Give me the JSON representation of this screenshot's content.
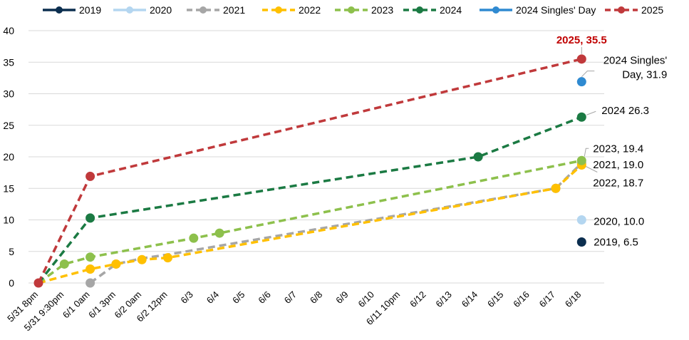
{
  "chart_data": {
    "type": "line",
    "title": "",
    "xlabel": "",
    "ylabel": "",
    "ylim": [
      0,
      40
    ],
    "yticks": [
      0,
      5,
      10,
      15,
      20,
      25,
      30,
      35,
      40
    ],
    "grid": "horizontal",
    "legend_position": "top",
    "categories": [
      "5/31 8pm",
      "5/31 9:30pm",
      "6/1 0am",
      "6/1 3pm",
      "6/2 0am",
      "6/2 12pm",
      "6/3",
      "6/4",
      "6/5",
      "6/6",
      "6/7",
      "6/8",
      "6/9",
      "6/10",
      "6/11 10pm",
      "6/12",
      "6/13",
      "6/14",
      "6/15",
      "6/16",
      "6/17",
      "6/18"
    ],
    "series": [
      {
        "name": "2019",
        "color": "#0b2e4f",
        "dashed": false,
        "points": [
          {
            "x": "6/18",
            "y": 6.5,
            "marker": true
          }
        ]
      },
      {
        "name": "2020",
        "color": "#b4d6f0",
        "dashed": false,
        "points": [
          {
            "x": "6/18",
            "y": 10.0,
            "marker": true
          }
        ]
      },
      {
        "name": "2021",
        "color": "#a6a6a6",
        "dashed": true,
        "points": [
          {
            "x": "6/1 0am",
            "y": 0,
            "marker": true
          },
          {
            "x": "6/1 3pm",
            "y": 3.0,
            "marker": true
          },
          {
            "x": "6/2 0am",
            "y": 3.9,
            "marker": false
          },
          {
            "x": "6/2 12pm",
            "y": 4.5,
            "marker": false
          },
          {
            "x": "6/17",
            "y": 15.0,
            "marker": true
          },
          {
            "x": "6/18",
            "y": 19.0,
            "marker": true
          }
        ]
      },
      {
        "name": "2022",
        "color": "#ffc000",
        "dashed": true,
        "points": [
          {
            "x": "5/31 8pm",
            "y": 0,
            "marker": false
          },
          {
            "x": "6/1 0am",
            "y": 2.2,
            "marker": true
          },
          {
            "x": "6/1 3pm",
            "y": 3.0,
            "marker": true
          },
          {
            "x": "6/2 0am",
            "y": 3.7,
            "marker": true
          },
          {
            "x": "6/2 12pm",
            "y": 4.0,
            "marker": true
          },
          {
            "x": "6/17",
            "y": 15.0,
            "marker": true
          },
          {
            "x": "6/18",
            "y": 18.7,
            "marker": true
          }
        ]
      },
      {
        "name": "2023",
        "color": "#8dc04c",
        "dashed": true,
        "points": [
          {
            "x": "5/31 8pm",
            "y": 0,
            "marker": false
          },
          {
            "x": "5/31 9:30pm",
            "y": 3.0,
            "marker": true
          },
          {
            "x": "6/1 0am",
            "y": 4.1,
            "marker": true
          },
          {
            "x": "6/3",
            "y": 7.1,
            "marker": true
          },
          {
            "x": "6/4",
            "y": 7.9,
            "marker": true
          },
          {
            "x": "6/18",
            "y": 19.4,
            "marker": true
          }
        ]
      },
      {
        "name": "2024",
        "color": "#1b7a43",
        "dashed": true,
        "points": [
          {
            "x": "5/31 8pm",
            "y": 0,
            "marker": false
          },
          {
            "x": "6/1 0am",
            "y": 10.3,
            "marker": true
          },
          {
            "x": "6/14",
            "y": 20.0,
            "marker": true
          },
          {
            "x": "6/18",
            "y": 26.3,
            "marker": true
          }
        ]
      },
      {
        "name": "2024 Singles' Day",
        "color": "#2f8ad1",
        "dashed": false,
        "points": [
          {
            "x": "6/18",
            "y": 31.9,
            "marker": true
          }
        ]
      },
      {
        "name": "2025",
        "color": "#c0393b",
        "dashed": true,
        "points": [
          {
            "x": "5/31 8pm",
            "y": 0,
            "marker": true
          },
          {
            "x": "6/1 0am",
            "y": 16.9,
            "marker": true
          },
          {
            "x": "6/18",
            "y": 35.5,
            "marker": true
          }
        ]
      }
    ],
    "annotations": [
      {
        "series": "2025",
        "lines": [
          "2025, 35.5"
        ],
        "color": "#c00000",
        "bold": true
      },
      {
        "series": "2024 Singles' Day",
        "lines": [
          "2024 Singles'",
          "Day, 31.9"
        ]
      },
      {
        "series": "2024",
        "lines": [
          "2024  26.3"
        ]
      },
      {
        "series": "2023",
        "lines": [
          "2023, 19.4"
        ]
      },
      {
        "series": "2021",
        "lines": [
          "2021, 19.0"
        ]
      },
      {
        "series": "2022",
        "lines": [
          "2022, 18.7"
        ]
      },
      {
        "series": "2020",
        "lines": [
          "2020,  10.0"
        ]
      },
      {
        "series": "2019",
        "lines": [
          "2019,  6.5"
        ]
      }
    ]
  }
}
